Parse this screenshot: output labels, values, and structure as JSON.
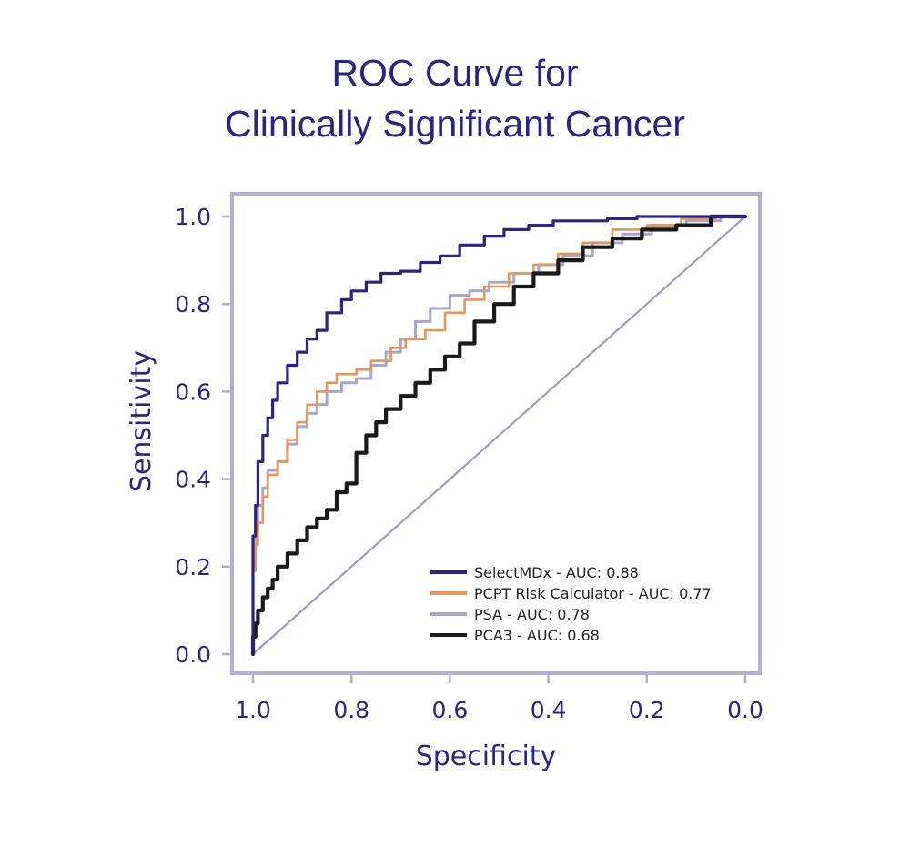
{
  "chart_data": {
    "type": "line",
    "title_lines": [
      "ROC Curve for",
      "Clinically Significant Cancer"
    ],
    "xlabel": "Specificity",
    "ylabel": "Sensitivity",
    "xlim": [
      1.0,
      0.0
    ],
    "ylim": [
      0.0,
      1.0
    ],
    "x_ticks": [
      "1.0",
      "0.8",
      "0.6",
      "0.4",
      "0.2",
      "0.0"
    ],
    "y_ticks": [
      "0.0",
      "0.2",
      "0.4",
      "0.6",
      "0.8",
      "1.0"
    ],
    "grid": false,
    "legend_position": "bottom-right",
    "reference_line": {
      "from": [
        1.0,
        0.0
      ],
      "to": [
        0.0,
        1.0
      ],
      "color": "#9a9cc4"
    },
    "colors": {
      "frame": "#b0b2d0",
      "text": "#2a2580"
    },
    "series": [
      {
        "name": "SelectMDx - AUC: 0.88",
        "color": "#2a2580",
        "x": [
          1.0,
          1.0,
          0.995,
          0.99,
          0.98,
          0.97,
          0.96,
          0.95,
          0.93,
          0.91,
          0.89,
          0.87,
          0.85,
          0.82,
          0.8,
          0.77,
          0.74,
          0.7,
          0.66,
          0.62,
          0.58,
          0.53,
          0.49,
          0.44,
          0.39,
          0.34,
          0.28,
          0.22,
          0.15,
          0.08,
          0.02,
          0.0
        ],
        "y": [
          0.0,
          0.2,
          0.27,
          0.34,
          0.44,
          0.5,
          0.54,
          0.58,
          0.62,
          0.66,
          0.69,
          0.72,
          0.74,
          0.78,
          0.81,
          0.83,
          0.85,
          0.87,
          0.875,
          0.895,
          0.91,
          0.935,
          0.955,
          0.97,
          0.98,
          0.99,
          0.99,
          0.995,
          1.0,
          1.0,
          1.0,
          1.0
        ]
      },
      {
        "name": "PCPT Risk Calculator - AUC: 0.77",
        "color": "#e8955a",
        "x": [
          1.0,
          0.995,
          0.99,
          0.98,
          0.97,
          0.95,
          0.93,
          0.91,
          0.89,
          0.87,
          0.85,
          0.83,
          0.81,
          0.79,
          0.76,
          0.72,
          0.69,
          0.65,
          0.61,
          0.57,
          0.53,
          0.48,
          0.43,
          0.38,
          0.33,
          0.27,
          0.2,
          0.13,
          0.06,
          0.0
        ],
        "y": [
          0.13,
          0.19,
          0.25,
          0.3,
          0.36,
          0.41,
          0.44,
          0.49,
          0.53,
          0.57,
          0.6,
          0.62,
          0.64,
          0.64,
          0.65,
          0.67,
          0.7,
          0.72,
          0.74,
          0.78,
          0.81,
          0.84,
          0.87,
          0.89,
          0.915,
          0.94,
          0.97,
          0.98,
          0.995,
          1.0
        ]
      },
      {
        "name": "PSA - AUC: 0.78",
        "color": "#a5a8cc",
        "x": [
          1.0,
          0.995,
          0.99,
          0.98,
          0.97,
          0.95,
          0.93,
          0.91,
          0.89,
          0.87,
          0.85,
          0.82,
          0.79,
          0.76,
          0.73,
          0.7,
          0.67,
          0.64,
          0.6,
          0.56,
          0.52,
          0.47,
          0.42,
          0.37,
          0.31,
          0.25,
          0.19,
          0.12,
          0.05,
          0.0
        ],
        "y": [
          0.16,
          0.22,
          0.28,
          0.34,
          0.38,
          0.42,
          0.44,
          0.48,
          0.52,
          0.55,
          0.57,
          0.6,
          0.62,
          0.63,
          0.66,
          0.69,
          0.72,
          0.76,
          0.79,
          0.82,
          0.83,
          0.85,
          0.87,
          0.89,
          0.91,
          0.94,
          0.96,
          0.98,
          0.99,
          1.0
        ]
      },
      {
        "name": "PCA3 - AUC: 0.68",
        "color": "#1a1a1a",
        "x": [
          1.0,
          0.995,
          0.99,
          0.98,
          0.97,
          0.96,
          0.95,
          0.93,
          0.91,
          0.89,
          0.87,
          0.85,
          0.83,
          0.81,
          0.79,
          0.77,
          0.75,
          0.73,
          0.7,
          0.67,
          0.64,
          0.61,
          0.58,
          0.55,
          0.51,
          0.47,
          0.43,
          0.38,
          0.33,
          0.27,
          0.21,
          0.14,
          0.07,
          0.0
        ],
        "y": [
          0.0,
          0.04,
          0.07,
          0.1,
          0.13,
          0.15,
          0.17,
          0.2,
          0.23,
          0.26,
          0.29,
          0.31,
          0.33,
          0.37,
          0.39,
          0.46,
          0.5,
          0.53,
          0.56,
          0.59,
          0.62,
          0.65,
          0.68,
          0.71,
          0.76,
          0.8,
          0.84,
          0.87,
          0.9,
          0.93,
          0.95,
          0.97,
          0.98,
          1.0
        ]
      }
    ]
  }
}
